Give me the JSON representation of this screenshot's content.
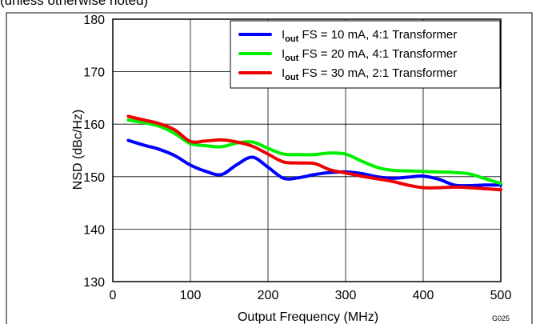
{
  "header": {
    "condition_text": "(unless otherwise noted)"
  },
  "figure_id": "G025",
  "chart_data": {
    "type": "line",
    "title": "",
    "xlabel": "Output Frequency (MHz)",
    "ylabel": "NSD (dBc/Hz)",
    "xlim": [
      0,
      500
    ],
    "ylim": [
      130,
      180
    ],
    "x_ticks": [
      0,
      100,
      200,
      300,
      400,
      500
    ],
    "y_ticks": [
      130,
      140,
      150,
      160,
      170,
      180
    ],
    "grid": true,
    "legend_position": "top-right",
    "series": [
      {
        "legend_sub": "out",
        "legend_rest": " FS = 10 mA, 4:1 Transformer",
        "color": "#0000ff",
        "x": [
          20,
          40,
          60,
          80,
          100,
          120,
          140,
          160,
          180,
          200,
          220,
          240,
          260,
          280,
          300,
          320,
          340,
          360,
          380,
          400,
          420,
          440,
          460,
          480,
          500
        ],
        "y": [
          156.9,
          156.0,
          155.2,
          154.0,
          152.2,
          151.0,
          150.4,
          152.3,
          153.7,
          151.8,
          149.7,
          149.8,
          150.4,
          150.8,
          150.9,
          150.6,
          150.0,
          149.7,
          149.9,
          150.1,
          149.5,
          148.4,
          148.3,
          148.4,
          148.4
        ]
      },
      {
        "legend_sub": "out",
        "legend_rest": " FS = 20 mA, 4:1 Transformer",
        "color": "#00ee00",
        "x": [
          20,
          40,
          60,
          80,
          100,
          120,
          140,
          160,
          180,
          200,
          220,
          240,
          260,
          280,
          300,
          320,
          340,
          360,
          380,
          400,
          420,
          440,
          460,
          480,
          500
        ],
        "y": [
          160.8,
          160.3,
          159.6,
          158.2,
          156.3,
          155.9,
          155.7,
          156.4,
          156.6,
          155.4,
          154.3,
          154.2,
          154.2,
          154.5,
          154.3,
          153.0,
          151.8,
          151.2,
          151.1,
          151.0,
          150.9,
          150.8,
          150.5,
          149.6,
          148.7
        ]
      },
      {
        "legend_sub": "out",
        "legend_rest": " FS = 30 mA, 2:1 Transformer",
        "color": "#ee0000",
        "x": [
          20,
          40,
          60,
          80,
          100,
          120,
          140,
          160,
          180,
          200,
          220,
          240,
          260,
          280,
          300,
          320,
          340,
          360,
          380,
          400,
          420,
          440,
          460,
          480,
          500
        ],
        "y": [
          161.5,
          160.8,
          160.1,
          158.9,
          156.7,
          156.8,
          157.0,
          156.6,
          155.8,
          154.3,
          152.8,
          152.6,
          152.5,
          151.3,
          150.7,
          150.1,
          149.6,
          149.1,
          148.4,
          147.9,
          147.9,
          148.0,
          147.9,
          147.7,
          147.5
        ]
      }
    ]
  }
}
